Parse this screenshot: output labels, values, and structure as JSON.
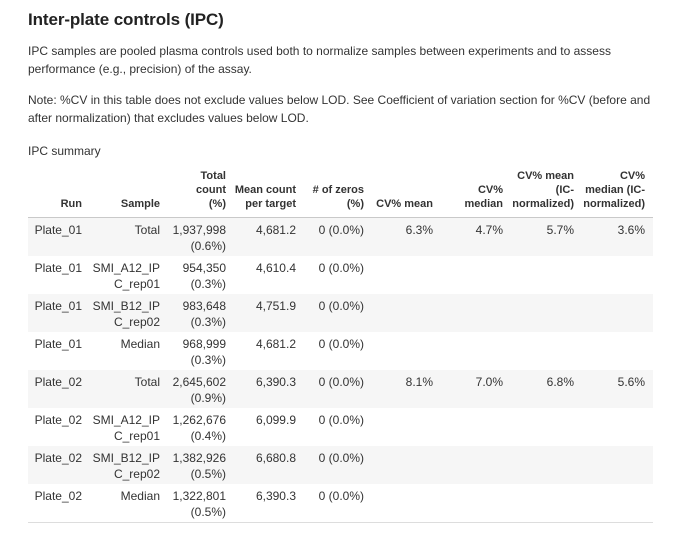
{
  "page": {
    "title": "Inter-plate controls (IPC)",
    "intro": "IPC samples are pooled plasma controls used both to normalize samples between experiments and to assess performance (e.g., precision) of the assay.",
    "note": "Note: %CV in this table does not exclude values below LOD. See Coefficient of variation section for %CV (before and after normalization) that excludes values below LOD.",
    "table_caption": "IPC summary"
  },
  "table": {
    "columns": [
      {
        "key": "run",
        "label": "Run"
      },
      {
        "key": "sample",
        "label": "Sample"
      },
      {
        "key": "total_count",
        "label": "Total count\n(%)"
      },
      {
        "key": "mean_count_per_target",
        "label": "Mean count\nper target"
      },
      {
        "key": "num_zeros",
        "label": "# of zeros\n(%)"
      },
      {
        "key": "cv_mean",
        "label": "CV% mean"
      },
      {
        "key": "cv_median",
        "label": "CV%\nmedian"
      },
      {
        "key": "cv_mean_ic_normalized",
        "label": "CV% mean\n(IC-\nnormalized)"
      },
      {
        "key": "cv_median_ic_normalized",
        "label": "CV%\nmedian (IC-\nnormalized)"
      }
    ],
    "rows": [
      {
        "run": "Plate_01",
        "sample": "Total",
        "total_count": "1,937,998",
        "total_count_pct": "(0.6%)",
        "mean_count_per_target": "4,681.2",
        "num_zeros": "0 (0.0%)",
        "cv_mean": "6.3%",
        "cv_median": "4.7%",
        "cv_mean_ic_normalized": "5.7%",
        "cv_median_ic_normalized": "3.6%"
      },
      {
        "run": "Plate_01",
        "sample": "SMI_A12_IPC_rep01",
        "total_count": "954,350",
        "total_count_pct": "(0.3%)",
        "mean_count_per_target": "4,610.4",
        "num_zeros": "0 (0.0%)",
        "cv_mean": "",
        "cv_median": "",
        "cv_mean_ic_normalized": "",
        "cv_median_ic_normalized": ""
      },
      {
        "run": "Plate_01",
        "sample": "SMI_B12_IPC_rep02",
        "total_count": "983,648",
        "total_count_pct": "(0.3%)",
        "mean_count_per_target": "4,751.9",
        "num_zeros": "0 (0.0%)",
        "cv_mean": "",
        "cv_median": "",
        "cv_mean_ic_normalized": "",
        "cv_median_ic_normalized": ""
      },
      {
        "run": "Plate_01",
        "sample": "Median",
        "total_count": "968,999",
        "total_count_pct": "(0.3%)",
        "mean_count_per_target": "4,681.2",
        "num_zeros": "0 (0.0%)",
        "cv_mean": "",
        "cv_median": "",
        "cv_mean_ic_normalized": "",
        "cv_median_ic_normalized": ""
      },
      {
        "run": "Plate_02",
        "sample": "Total",
        "total_count": "2,645,602",
        "total_count_pct": "(0.9%)",
        "mean_count_per_target": "6,390.3",
        "num_zeros": "0 (0.0%)",
        "cv_mean": "8.1%",
        "cv_median": "7.0%",
        "cv_mean_ic_normalized": "6.8%",
        "cv_median_ic_normalized": "5.6%"
      },
      {
        "run": "Plate_02",
        "sample": "SMI_A12_IPC_rep01",
        "total_count": "1,262,676",
        "total_count_pct": "(0.4%)",
        "mean_count_per_target": "6,099.9",
        "num_zeros": "0 (0.0%)",
        "cv_mean": "",
        "cv_median": "",
        "cv_mean_ic_normalized": "",
        "cv_median_ic_normalized": ""
      },
      {
        "run": "Plate_02",
        "sample": "SMI_B12_IPC_rep02",
        "total_count": "1,382,926",
        "total_count_pct": "(0.5%)",
        "mean_count_per_target": "6,680.8",
        "num_zeros": "0 (0.0%)",
        "cv_mean": "",
        "cv_median": "",
        "cv_mean_ic_normalized": "",
        "cv_median_ic_normalized": ""
      },
      {
        "run": "Plate_02",
        "sample": "Median",
        "total_count": "1,322,801",
        "total_count_pct": "(0.5%)",
        "mean_count_per_target": "6,390.3",
        "num_zeros": "0 (0.0%)",
        "cv_mean": "",
        "cv_median": "",
        "cv_mean_ic_normalized": "",
        "cv_median_ic_normalized": ""
      }
    ]
  }
}
